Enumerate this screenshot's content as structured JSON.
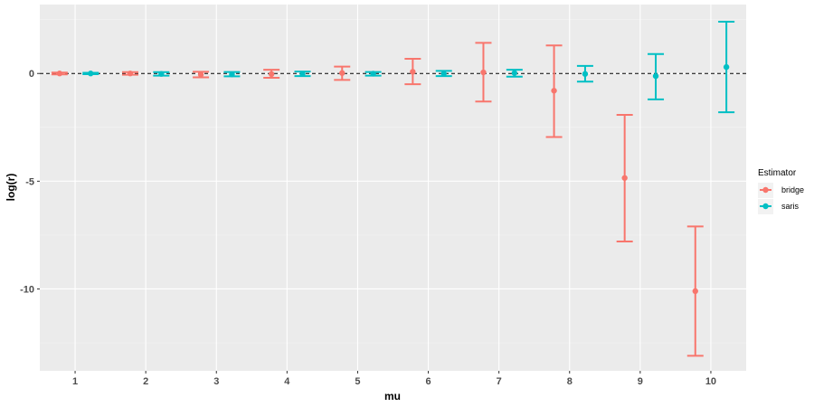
{
  "chart_data": {
    "type": "scatter",
    "xlabel": "mu",
    "ylabel": "log(r)",
    "categories": [
      "1",
      "2",
      "3",
      "4",
      "5",
      "6",
      "7",
      "8",
      "9",
      "10"
    ],
    "ylim": [
      -13.8,
      3.2
    ],
    "yticks": [
      0,
      -5,
      -10
    ],
    "ytick_labels": [
      "0",
      "-5",
      "-10"
    ],
    "reference_line_y": 0,
    "grid": true,
    "legend_title": "Estimator",
    "legend_position": "right",
    "series": [
      {
        "name": "bridge",
        "color": "#F8766D",
        "offset": -0.22,
        "values": [
          0.0,
          0.0,
          -0.05,
          -0.03,
          0.02,
          0.08,
          0.05,
          -0.8,
          -4.85,
          -10.1
        ],
        "lower": [
          -0.04,
          -0.06,
          -0.18,
          -0.2,
          -0.3,
          -0.5,
          -1.3,
          -2.95,
          -7.8,
          -13.1
        ],
        "upper": [
          0.04,
          0.06,
          0.08,
          0.17,
          0.32,
          0.68,
          1.42,
          1.3,
          -1.92,
          -7.1
        ]
      },
      {
        "name": "saris",
        "color": "#00BFC4",
        "offset": 0.22,
        "values": [
          0.0,
          -0.02,
          -0.04,
          -0.02,
          -0.01,
          -0.01,
          0.02,
          -0.02,
          -0.12,
          0.3
        ],
        "lower": [
          -0.03,
          -0.1,
          -0.13,
          -0.12,
          -0.1,
          -0.12,
          -0.15,
          -0.38,
          -1.2,
          -1.8
        ],
        "upper": [
          0.03,
          0.06,
          0.07,
          0.09,
          0.07,
          0.12,
          0.17,
          0.35,
          0.9,
          2.4
        ]
      }
    ]
  }
}
